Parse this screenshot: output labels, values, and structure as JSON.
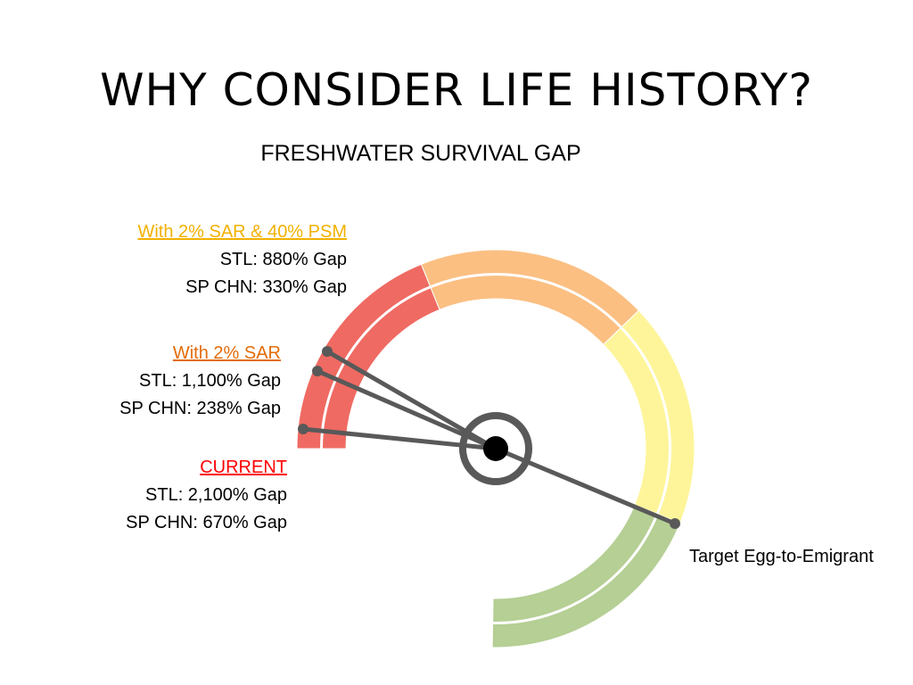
{
  "title": "WHY CONSIDER LIFE HISTORY?",
  "subtitle": "FRESHWATER SURVIVAL GAP",
  "scenarios": [
    {
      "key": "psm",
      "heading": "With 2% SAR & 40% PSM",
      "heading_color": "#f2b100",
      "line1": "STL: 880% Gap",
      "line2": "SP CHN: 330% Gap"
    },
    {
      "key": "sar",
      "heading": "With 2% SAR",
      "heading_color": "#e36c0a",
      "line1": "STL: 1,100% Gap",
      "line2": "SP CHN: 238% Gap"
    },
    {
      "key": "current",
      "heading": "CURRENT",
      "heading_color": "#ff0000",
      "line1": "STL: 2,100% Gap",
      "line2": "SP CHN: 670% Gap"
    }
  ],
  "target_label": "Target Egg-to-Emigrant",
  "gauge": {
    "band_colors": [
      "#ef6a62",
      "#fbbf82",
      "#fef59a",
      "#b5cf94"
    ],
    "needle_color": "#595959",
    "hub_color": "#000000"
  }
}
